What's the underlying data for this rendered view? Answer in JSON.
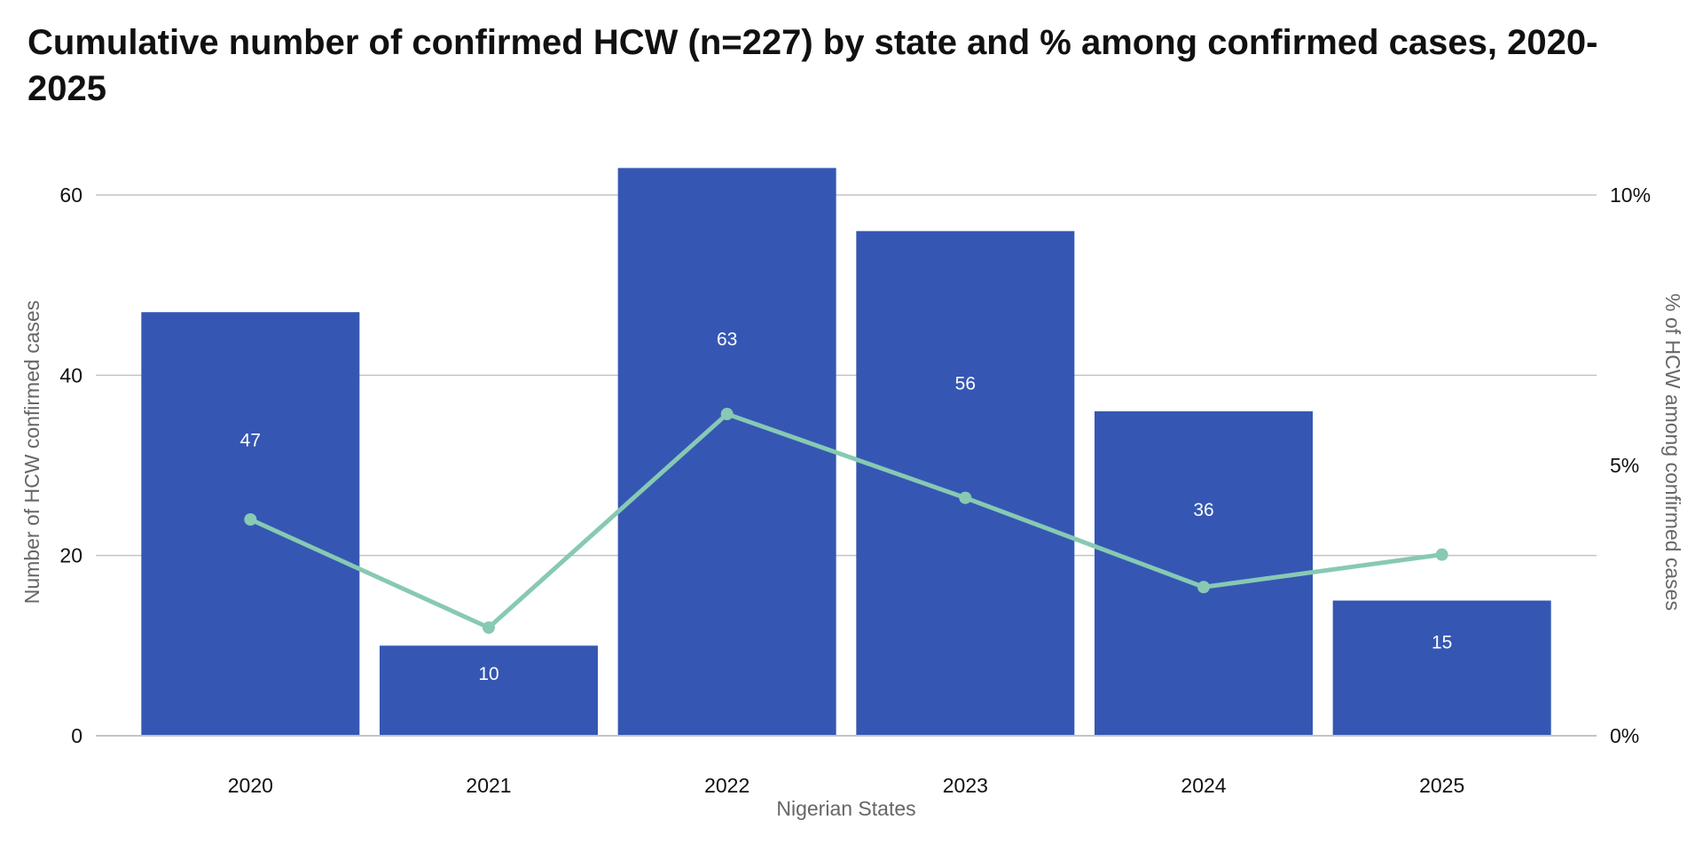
{
  "chart_data": {
    "type": "bar",
    "title": "Cumulative number of confirmed HCW (n=227) by state and % among confirmed cases, 2020-2025",
    "categories": [
      "2020",
      "2021",
      "2022",
      "2023",
      "2024",
      "2025"
    ],
    "series": [
      {
        "name": "Number of HCW confirmed cases",
        "type": "bar",
        "axis": "left",
        "values": [
          47,
          10,
          63,
          56,
          36,
          15
        ],
        "labels": [
          "47",
          "10",
          "63",
          "56",
          "36",
          "15"
        ]
      },
      {
        "name": "% of HCW among confirmed cases",
        "type": "line",
        "axis": "right",
        "values": [
          4.0,
          2.0,
          5.95,
          4.4,
          2.75,
          3.35
        ]
      }
    ],
    "xlabel": "Nigerian States",
    "ylabel": "Number of HCW confirmed cases",
    "y2label": "% of HCW among confirmed cases",
    "ylim": [
      0,
      60
    ],
    "yticks": [
      0,
      20,
      40,
      60
    ],
    "ytick_labels": [
      "0",
      "20",
      "40",
      "60"
    ],
    "y2lim": [
      0,
      10
    ],
    "y2ticks": [
      0,
      5,
      10
    ],
    "y2tick_labels": [
      "0%",
      "5%",
      "10%"
    ],
    "grid": true,
    "colors": {
      "bar": "#3557b3",
      "line": "#87c9b3",
      "grid": "#c4c4c4",
      "bar_label": "#ffffff",
      "axis_title": "#666666",
      "tick_label": "#111111"
    }
  }
}
